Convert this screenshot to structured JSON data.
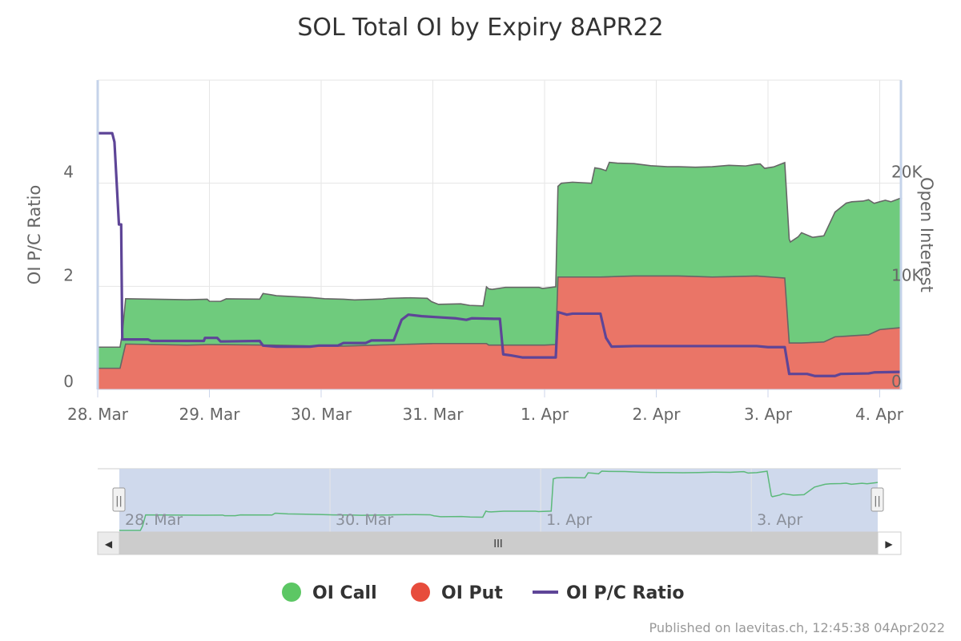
{
  "chart_data": {
    "type": "area",
    "title": "SOL Total OI by Expiry 8APR22",
    "x_tick_labels": [
      "28. Mar",
      "29. Mar",
      "30. Mar",
      "31. Mar",
      "1. Apr",
      "2. Apr",
      "3. Apr",
      "4. Apr"
    ],
    "y_left": {
      "label": "OI P/C Ratio",
      "ticks": [
        "0",
        "2",
        "4"
      ],
      "range": [
        0,
        6
      ]
    },
    "y_right": {
      "label": "Open Interest",
      "ticks": [
        "0",
        "10K",
        "20K"
      ],
      "range": [
        0,
        30000
      ]
    },
    "x_range_days": [
      0,
      7.2
    ],
    "series": [
      {
        "name": "OI Call",
        "color": "#6fcb7d",
        "kind": "stacked-area",
        "points": [
          [
            0,
            2050
          ],
          [
            0.2,
            2050
          ],
          [
            0.22,
            2400
          ],
          [
            0.25,
            4400
          ],
          [
            0.8,
            4400
          ],
          [
            0.98,
            4400
          ],
          [
            1.0,
            4200
          ],
          [
            1.1,
            4200
          ],
          [
            1.15,
            4450
          ],
          [
            1.45,
            4450
          ],
          [
            1.48,
            5000
          ],
          [
            1.6,
            4800
          ],
          [
            1.9,
            4700
          ],
          [
            2.03,
            4600
          ],
          [
            2.2,
            4550
          ],
          [
            2.3,
            4450
          ],
          [
            2.55,
            4450
          ],
          [
            2.6,
            4500
          ],
          [
            2.8,
            4500
          ],
          [
            2.95,
            4400
          ],
          [
            2.99,
            4050
          ],
          [
            3.05,
            3800
          ],
          [
            3.25,
            3850
          ],
          [
            3.33,
            3700
          ],
          [
            3.45,
            3650
          ],
          [
            3.48,
            5500
          ],
          [
            3.53,
            5400
          ],
          [
            3.65,
            5600
          ],
          [
            3.95,
            5600
          ],
          [
            3.98,
            5500
          ],
          [
            4.1,
            5600
          ],
          [
            4.12,
            8800
          ],
          [
            4.15,
            9100
          ],
          [
            4.25,
            9200
          ],
          [
            4.42,
            9100
          ],
          [
            4.45,
            10600
          ],
          [
            4.5,
            10500
          ],
          [
            4.55,
            10300
          ],
          [
            4.58,
            11100
          ],
          [
            4.65,
            11000
          ],
          [
            4.8,
            10900
          ],
          [
            4.95,
            10700
          ],
          [
            5.1,
            10600
          ],
          [
            5.35,
            10600
          ],
          [
            5.5,
            10700
          ],
          [
            5.65,
            10800
          ],
          [
            5.8,
            10700
          ],
          [
            5.93,
            10900
          ],
          [
            5.97,
            10500
          ],
          [
            6.05,
            10700
          ],
          [
            6.15,
            11200
          ],
          [
            6.2,
            9800
          ],
          [
            6.27,
            10300
          ],
          [
            6.3,
            10700
          ],
          [
            6.4,
            10200
          ],
          [
            6.5,
            10300
          ],
          [
            6.6,
            12100
          ],
          [
            6.7,
            12900
          ],
          [
            6.75,
            13000
          ],
          [
            6.85,
            13000
          ],
          [
            6.9,
            13100
          ],
          [
            6.95,
            12500
          ],
          [
            7.0,
            12400
          ],
          [
            7.05,
            12500
          ],
          [
            7.1,
            12300
          ],
          [
            7.2,
            12600
          ]
        ]
      },
      {
        "name": "OI Put",
        "color": "#ea7567",
        "kind": "stacked-area",
        "points": [
          [
            0,
            2050
          ],
          [
            0.2,
            2050
          ],
          [
            0.25,
            4400
          ],
          [
            0.8,
            4300
          ],
          [
            1.0,
            4350
          ],
          [
            1.5,
            4300
          ],
          [
            1.55,
            4300
          ],
          [
            2.0,
            4200
          ],
          [
            2.2,
            4200
          ],
          [
            2.5,
            4300
          ],
          [
            3.0,
            4450
          ],
          [
            3.48,
            4450
          ],
          [
            3.5,
            4300
          ],
          [
            4.0,
            4300
          ],
          [
            4.1,
            4350
          ],
          [
            4.12,
            10900
          ],
          [
            4.5,
            10900
          ],
          [
            4.8,
            11000
          ],
          [
            5.2,
            11000
          ],
          [
            5.5,
            10900
          ],
          [
            5.9,
            11000
          ],
          [
            6.15,
            10800
          ],
          [
            6.19,
            4500
          ],
          [
            6.3,
            4500
          ],
          [
            6.5,
            4600
          ],
          [
            6.6,
            5100
          ],
          [
            6.9,
            5300
          ],
          [
            7.0,
            5800
          ],
          [
            7.2,
            6000
          ]
        ]
      },
      {
        "name": "OI P/C Ratio",
        "color": "#5e4597",
        "kind": "line",
        "points": [
          [
            0,
            4.97
          ],
          [
            0.13,
            4.97
          ],
          [
            0.15,
            4.8
          ],
          [
            0.17,
            4.0
          ],
          [
            0.19,
            3.2
          ],
          [
            0.21,
            3.2
          ],
          [
            0.22,
            0.97
          ],
          [
            0.45,
            0.97
          ],
          [
            0.48,
            0.94
          ],
          [
            0.95,
            0.94
          ],
          [
            0.96,
            1.0
          ],
          [
            1.07,
            1.0
          ],
          [
            1.1,
            0.93
          ],
          [
            1.45,
            0.94
          ],
          [
            1.48,
            0.85
          ],
          [
            1.6,
            0.83
          ],
          [
            1.9,
            0.83
          ],
          [
            1.98,
            0.85
          ],
          [
            2.15,
            0.85
          ],
          [
            2.2,
            0.9
          ],
          [
            2.4,
            0.9
          ],
          [
            2.45,
            0.95
          ],
          [
            2.65,
            0.95
          ],
          [
            2.72,
            1.35
          ],
          [
            2.78,
            1.45
          ],
          [
            2.9,
            1.42
          ],
          [
            3.05,
            1.4
          ],
          [
            3.2,
            1.38
          ],
          [
            3.3,
            1.35
          ],
          [
            3.35,
            1.38
          ],
          [
            3.55,
            1.37
          ],
          [
            3.6,
            1.37
          ],
          [
            3.63,
            0.68
          ],
          [
            3.7,
            0.66
          ],
          [
            3.8,
            0.62
          ],
          [
            4.0,
            0.62
          ],
          [
            4.1,
            0.62
          ],
          [
            4.12,
            1.5
          ],
          [
            4.2,
            1.45
          ],
          [
            4.25,
            1.47
          ],
          [
            4.5,
            1.47
          ],
          [
            4.55,
            1.0
          ],
          [
            4.6,
            0.83
          ],
          [
            4.8,
            0.84
          ],
          [
            5.3,
            0.84
          ],
          [
            5.6,
            0.84
          ],
          [
            5.9,
            0.84
          ],
          [
            6.0,
            0.82
          ],
          [
            6.15,
            0.82
          ],
          [
            6.19,
            0.3
          ],
          [
            6.35,
            0.3
          ],
          [
            6.42,
            0.26
          ],
          [
            6.6,
            0.26
          ],
          [
            6.65,
            0.3
          ],
          [
            6.9,
            0.31
          ],
          [
            6.95,
            0.33
          ],
          [
            7.2,
            0.34
          ]
        ]
      }
    ],
    "navigator": {
      "tick_labels": [
        "28. Mar",
        "30. Mar",
        "1. Apr",
        "3. Apr"
      ],
      "scroll_label": "III",
      "left_arrow": "◀",
      "right_arrow": "▶",
      "handle_label": "||"
    },
    "legend": {
      "position": "bottom-center",
      "items": [
        {
          "label": "OI Call",
          "color": "#5cc764",
          "symbol": "circle"
        },
        {
          "label": "OI Put",
          "color": "#e74c3c",
          "symbol": "circle"
        },
        {
          "label": "OI P/C Ratio",
          "color": "#5e4597",
          "symbol": "line"
        }
      ]
    },
    "grid": true
  },
  "credits": "Published on laevitas.ch, 12:45:38 04Apr2022"
}
